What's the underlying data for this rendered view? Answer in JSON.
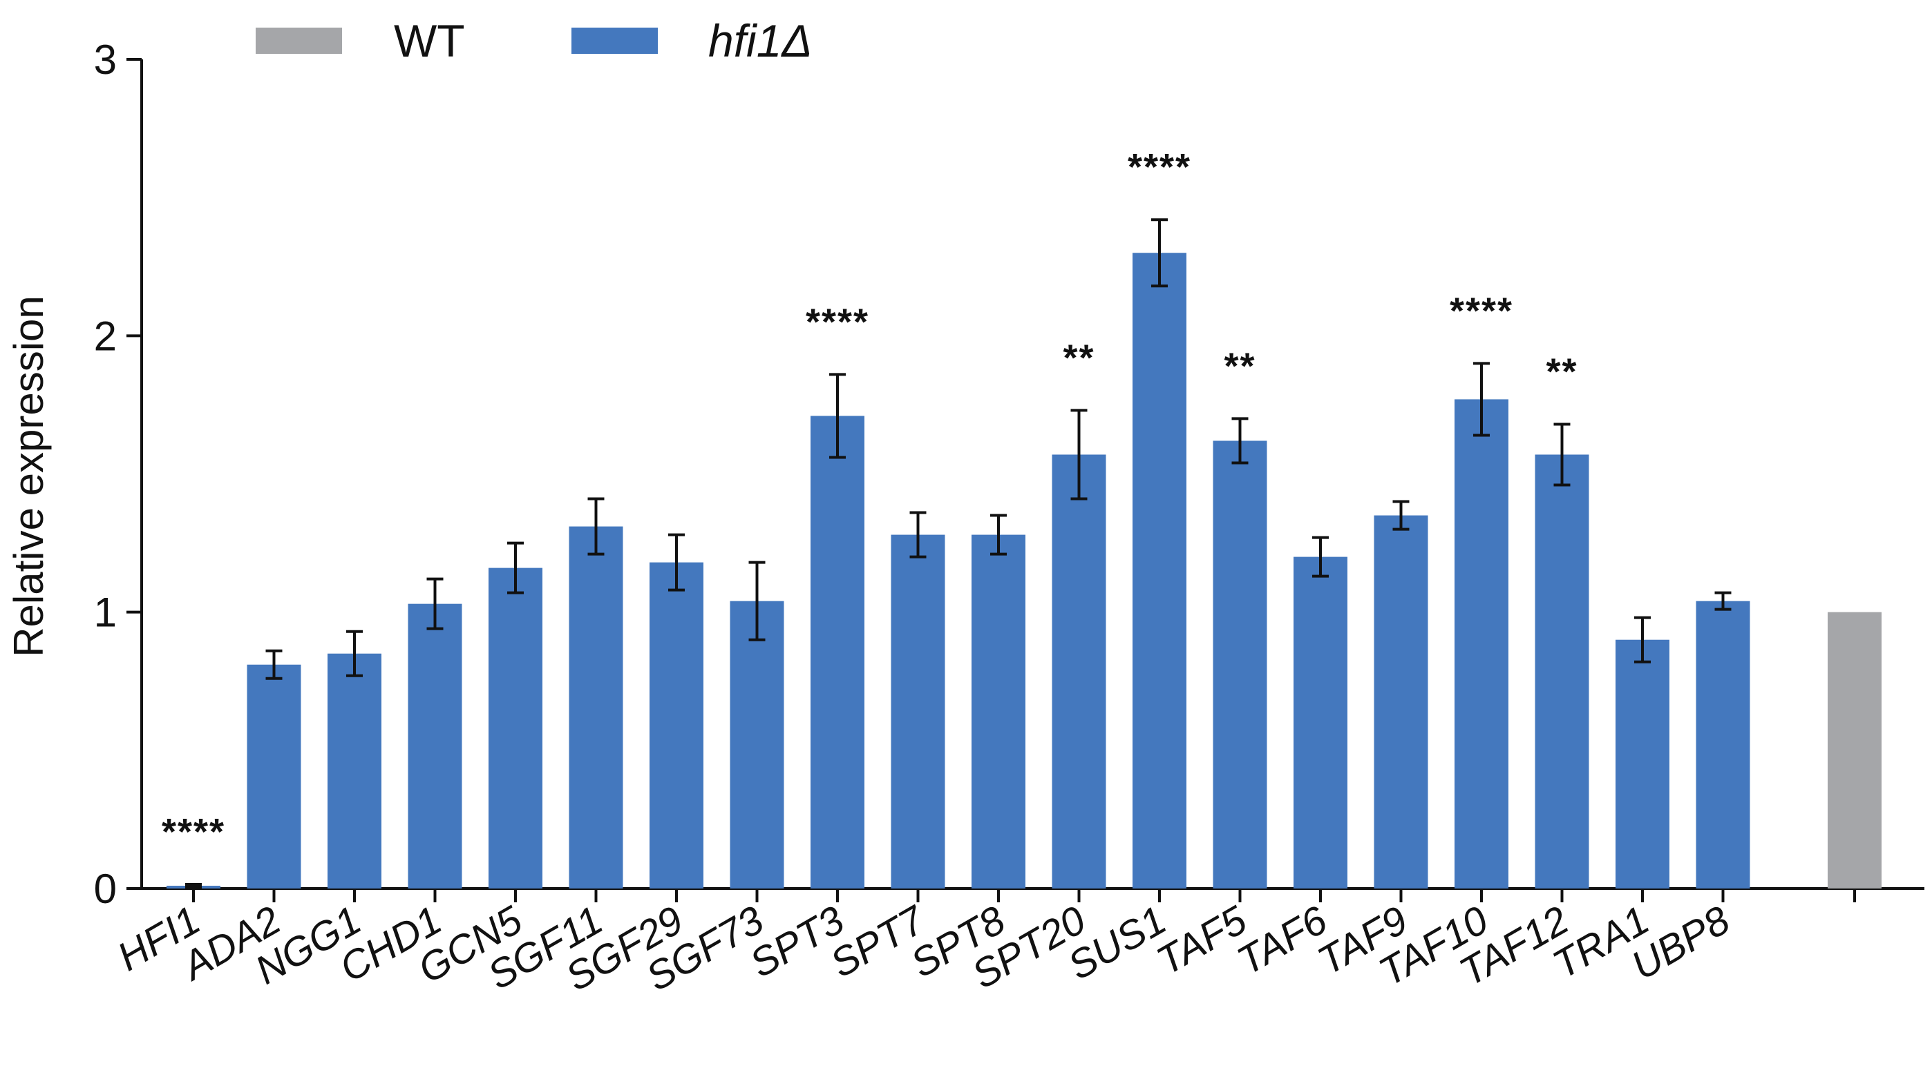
{
  "chart_data": {
    "type": "bar",
    "ylabel": "Relative expression",
    "xlabel": "",
    "ylim": [
      0,
      3
    ],
    "yticks": [
      0,
      1,
      2,
      3
    ],
    "grid": false,
    "legend": {
      "placement": "top-left",
      "entries": [
        {
          "name": "WT",
          "color": "#a5a6a9",
          "italic": false
        },
        {
          "name": "hfi1Δ",
          "color": "#4478be",
          "italic": true
        }
      ]
    },
    "categories": [
      "HFI1",
      "ADA2",
      "NGG1",
      "CHD1",
      "GCN5",
      "SGF11",
      "SGF29",
      "SGF73",
      "SPT3",
      "SPT7",
      "SPT8",
      "SPT20",
      "SUS1",
      "TAF5",
      "TAF6",
      "TAF9",
      "TAF10",
      "TAF12",
      "TRA1",
      "UBP8",
      ""
    ],
    "series": [
      {
        "name": "hfi1Δ",
        "color": "#4478be",
        "values": [
          0.01,
          0.81,
          0.85,
          1.03,
          1.16,
          1.31,
          1.18,
          1.04,
          1.71,
          1.28,
          1.28,
          1.57,
          2.3,
          1.62,
          1.2,
          1.35,
          1.77,
          1.57,
          0.9,
          1.04,
          null
        ],
        "error": [
          0.005,
          0.05,
          0.08,
          0.09,
          0.09,
          0.1,
          0.1,
          0.14,
          0.15,
          0.08,
          0.07,
          0.16,
          0.12,
          0.08,
          0.07,
          0.05,
          0.13,
          0.11,
          0.08,
          0.03,
          null
        ],
        "significance": [
          "****",
          "",
          "",
          "",
          "",
          "",
          "",
          "",
          "****",
          "",
          "",
          "**",
          "****",
          "**",
          "",
          "",
          "****",
          "**",
          "",
          "",
          ""
        ]
      },
      {
        "name": "WT",
        "color": "#a5a6a9",
        "values": [
          null,
          null,
          null,
          null,
          null,
          null,
          null,
          null,
          null,
          null,
          null,
          null,
          null,
          null,
          null,
          null,
          null,
          null,
          null,
          null,
          1.0
        ],
        "error": [
          null,
          null,
          null,
          null,
          null,
          null,
          null,
          null,
          null,
          null,
          null,
          null,
          null,
          null,
          null,
          null,
          null,
          null,
          null,
          null,
          null
        ],
        "significance": [
          "",
          "",
          "",
          "",
          "",
          "",
          "",
          "",
          "",
          "",
          "",
          "",
          "",
          "",
          "",
          "",
          "",
          "",
          "",
          "",
          ""
        ]
      }
    ]
  }
}
